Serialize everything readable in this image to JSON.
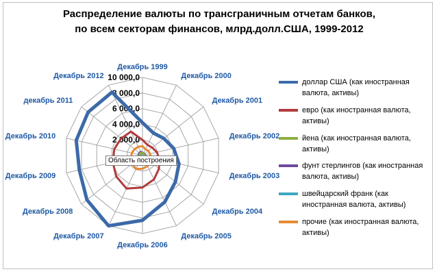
{
  "chart_data": {
    "type": "radar",
    "title_line1": "Распределение валюты по трансграничным отчетам банков,",
    "title_line2": "по всем секторам финансов, млрд.долл.США, 1999-2012",
    "categories": [
      "Декабрь 1999",
      "Декабрь 2000",
      "Декабрь 2001",
      "Декабрь 2002",
      "Декабрь 2003",
      "Декабрь 2004",
      "Декабрь 2005",
      "Декабрь 2006",
      "Декабрь 2007",
      "Декабрь 2008",
      "Декабрь 2009",
      "Декабрь 2010",
      "декабрь  2011",
      "Декабрь 2012"
    ],
    "tick_labels": [
      "2 000,0",
      "4 000,0",
      "6 000,0",
      "8 000,0",
      "10 000,0"
    ],
    "rlim": [
      0,
      10000
    ],
    "series": [
      {
        "name": "доллар США (как иностранная валюта, активы)",
        "color": "#3c6aa8",
        "values": [
          4200,
          3200,
          3500,
          4100,
          4800,
          5400,
          6600,
          8300,
          10000,
          9100,
          8300,
          8700,
          8900,
          9000
        ]
      },
      {
        "name": "евро  (как иностранная валюта, активы)",
        "color": "#b23a3a",
        "values": [
          2000,
          1500,
          1600,
          1900,
          2200,
          2700,
          3400,
          4100,
          4700,
          4300,
          3900,
          3700,
          3500,
          3400
        ]
      },
      {
        "name": "йена (как иностранная валюта, активы)",
        "color": "#8cae3f",
        "values": [
          300,
          280,
          260,
          250,
          280,
          300,
          320,
          340,
          380,
          400,
          380,
          390,
          410,
          400
        ]
      },
      {
        "name": "фунт стерлингов (как иностранная валюта, активы)",
        "color": "#6e4a9b",
        "values": [
          350,
          330,
          330,
          350,
          400,
          460,
          520,
          600,
          680,
          560,
          500,
          510,
          520,
          530
        ]
      },
      {
        "name": "швейцарский  франк (как иностранная валюта, активы)",
        "color": "#3fa6c2",
        "values": [
          250,
          230,
          220,
          220,
          240,
          260,
          280,
          300,
          330,
          310,
          290,
          300,
          310,
          320
        ]
      },
      {
        "name": "прочие (как иностранная валюта, активы)",
        "color": "#e58a35",
        "values": [
          1200,
          900,
          950,
          1000,
          1100,
          1300,
          1500,
          1700,
          1900,
          1700,
          1500,
          1400,
          1300,
          1250
        ]
      }
    ],
    "legend_position": "right",
    "grid": true
  },
  "tooltip": {
    "text": "Область построения"
  }
}
